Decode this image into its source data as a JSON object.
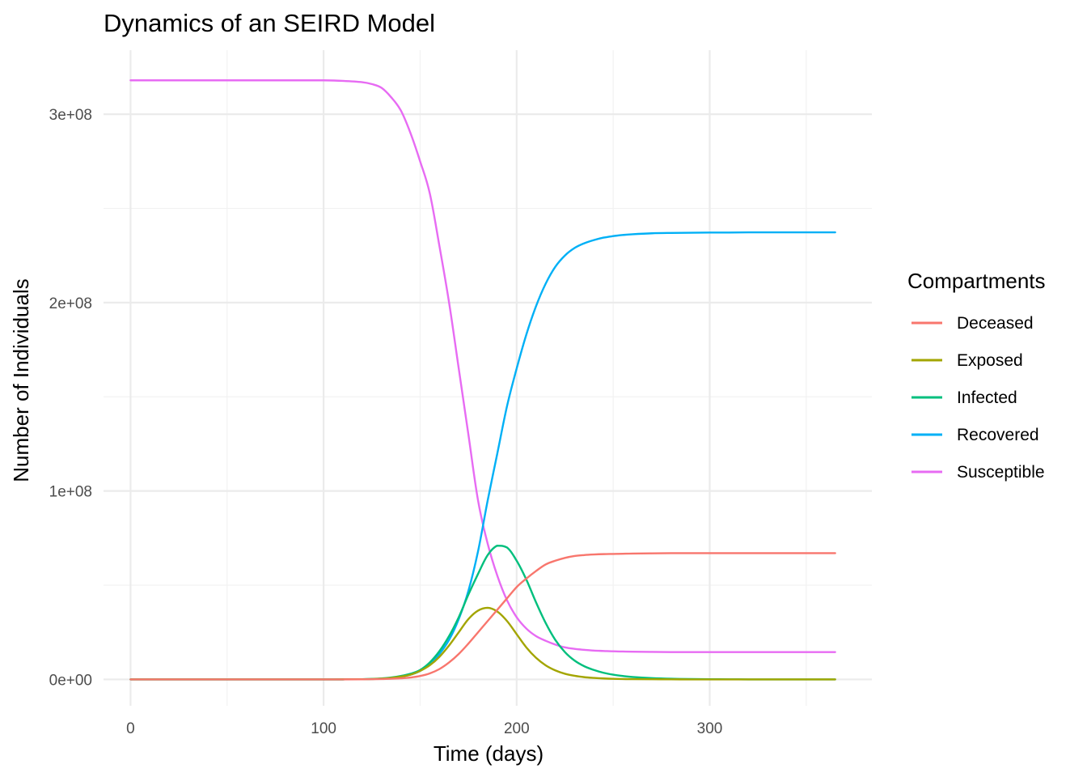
{
  "chart_data": {
    "type": "line",
    "title": "Dynamics of an SEIRD Model",
    "xlabel": "Time (days)",
    "ylabel": "Number of Individuals",
    "xlim": [
      -14,
      384
    ],
    "ylim": [
      -14000000,
      334000000
    ],
    "x_ticks": [
      0,
      100,
      200,
      300
    ],
    "x_tick_labels": [
      "0",
      "100",
      "200",
      "300"
    ],
    "x_minor_ticks": [
      50,
      150,
      250,
      350
    ],
    "y_ticks": [
      0,
      100000000,
      200000000,
      300000000
    ],
    "y_tick_labels": [
      "0e+00",
      "1e+08",
      "2e+08",
      "3e+08"
    ],
    "y_minor_ticks": [
      50000000,
      150000000,
      250000000
    ],
    "grid": true,
    "legend": {
      "title": "Compartments",
      "position": "right"
    },
    "x": [
      0,
      10,
      20,
      30,
      40,
      50,
      60,
      70,
      80,
      90,
      100,
      110,
      120,
      125,
      130,
      135,
      140,
      145,
      150,
      155,
      160,
      165,
      170,
      175,
      180,
      185,
      190,
      195,
      200,
      205,
      210,
      215,
      220,
      225,
      230,
      235,
      240,
      245,
      250,
      255,
      260,
      270,
      280,
      290,
      300,
      310,
      320,
      330,
      340,
      350,
      365
    ],
    "series": [
      {
        "name": "Deceased",
        "color": "#F8766D",
        "values": [
          0,
          0,
          0,
          0,
          0,
          0,
          0,
          0,
          0,
          0,
          0,
          10000,
          50000,
          100000,
          200000,
          350000,
          600000,
          1000000,
          1800000,
          3200000,
          5500000,
          9000000,
          13500000,
          19000000,
          25000000,
          31000000,
          37000000,
          43000000,
          49000000,
          53500000,
          57500000,
          61000000,
          63000000,
          64500000,
          65500000,
          66000000,
          66300000,
          66500000,
          66600000,
          66700000,
          66800000,
          66900000,
          67000000,
          67000000,
          67000000,
          67000000,
          67000000,
          67000000,
          67000000,
          67000000,
          67000000
        ]
      },
      {
        "name": "Exposed",
        "color": "#A3A500",
        "values": [
          0,
          0,
          0,
          0,
          0,
          0,
          0,
          0,
          0,
          0,
          0,
          20000,
          100000,
          200000,
          400000,
          800000,
          1500000,
          2500000,
          4500000,
          7500000,
          12000000,
          18000000,
          25000000,
          32000000,
          36500000,
          38000000,
          36000000,
          31000000,
          24000000,
          17000000,
          11500000,
          7500000,
          4800000,
          3000000,
          1900000,
          1200000,
          800000,
          500000,
          300000,
          200000,
          150000,
          100000,
          50000,
          0,
          0,
          0,
          0,
          0,
          0,
          0,
          0
        ]
      },
      {
        "name": "Infected",
        "color": "#00BF7D",
        "values": [
          0,
          0,
          0,
          0,
          0,
          0,
          0,
          0,
          0,
          0,
          0,
          20000,
          100000,
          250000,
          500000,
          1000000,
          1800000,
          3000000,
          5000000,
          9000000,
          15000000,
          23000000,
          33000000,
          45000000,
          56000000,
          66000000,
          71000000,
          70000000,
          63000000,
          53000000,
          41000000,
          30000000,
          21000000,
          14500000,
          10000000,
          7000000,
          5000000,
          3500000,
          2500000,
          1800000,
          1300000,
          700000,
          350000,
          180000,
          100000,
          50000,
          0,
          0,
          0,
          0,
          0
        ]
      },
      {
        "name": "Recovered",
        "color": "#00B0F6",
        "values": [
          0,
          0,
          0,
          0,
          0,
          0,
          0,
          0,
          0,
          0,
          0,
          20000,
          100000,
          200000,
          400000,
          800000,
          1500000,
          2500000,
          4500000,
          8000000,
          13500000,
          21000000,
          32000000,
          47000000,
          68000000,
          95000000,
          120000000,
          145000000,
          165000000,
          183000000,
          198000000,
          210000000,
          219000000,
          225000000,
          229000000,
          231500000,
          233200000,
          234500000,
          235300000,
          235900000,
          236300000,
          236800000,
          237000000,
          237100000,
          237200000,
          237200000,
          237300000,
          237300000,
          237300000,
          237300000,
          237300000
        ]
      },
      {
        "name": "Susceptible",
        "color": "#E76BF3",
        "values": [
          318000000,
          318000000,
          318000000,
          318000000,
          318000000,
          318000000,
          318000000,
          318000000,
          318000000,
          318000000,
          318000000,
          317700000,
          317000000,
          316000000,
          314000000,
          309000000,
          302000000,
          290000000,
          275000000,
          258000000,
          230000000,
          200000000,
          165000000,
          130000000,
          95000000,
          72000000,
          55000000,
          42000000,
          33000000,
          27000000,
          23000000,
          20500000,
          18500000,
          17000000,
          16200000,
          15700000,
          15300000,
          15100000,
          14900000,
          14800000,
          14700000,
          14600000,
          14500000,
          14500000,
          14500000,
          14500000,
          14500000,
          14500000,
          14500000,
          14500000,
          14500000
        ]
      }
    ]
  }
}
